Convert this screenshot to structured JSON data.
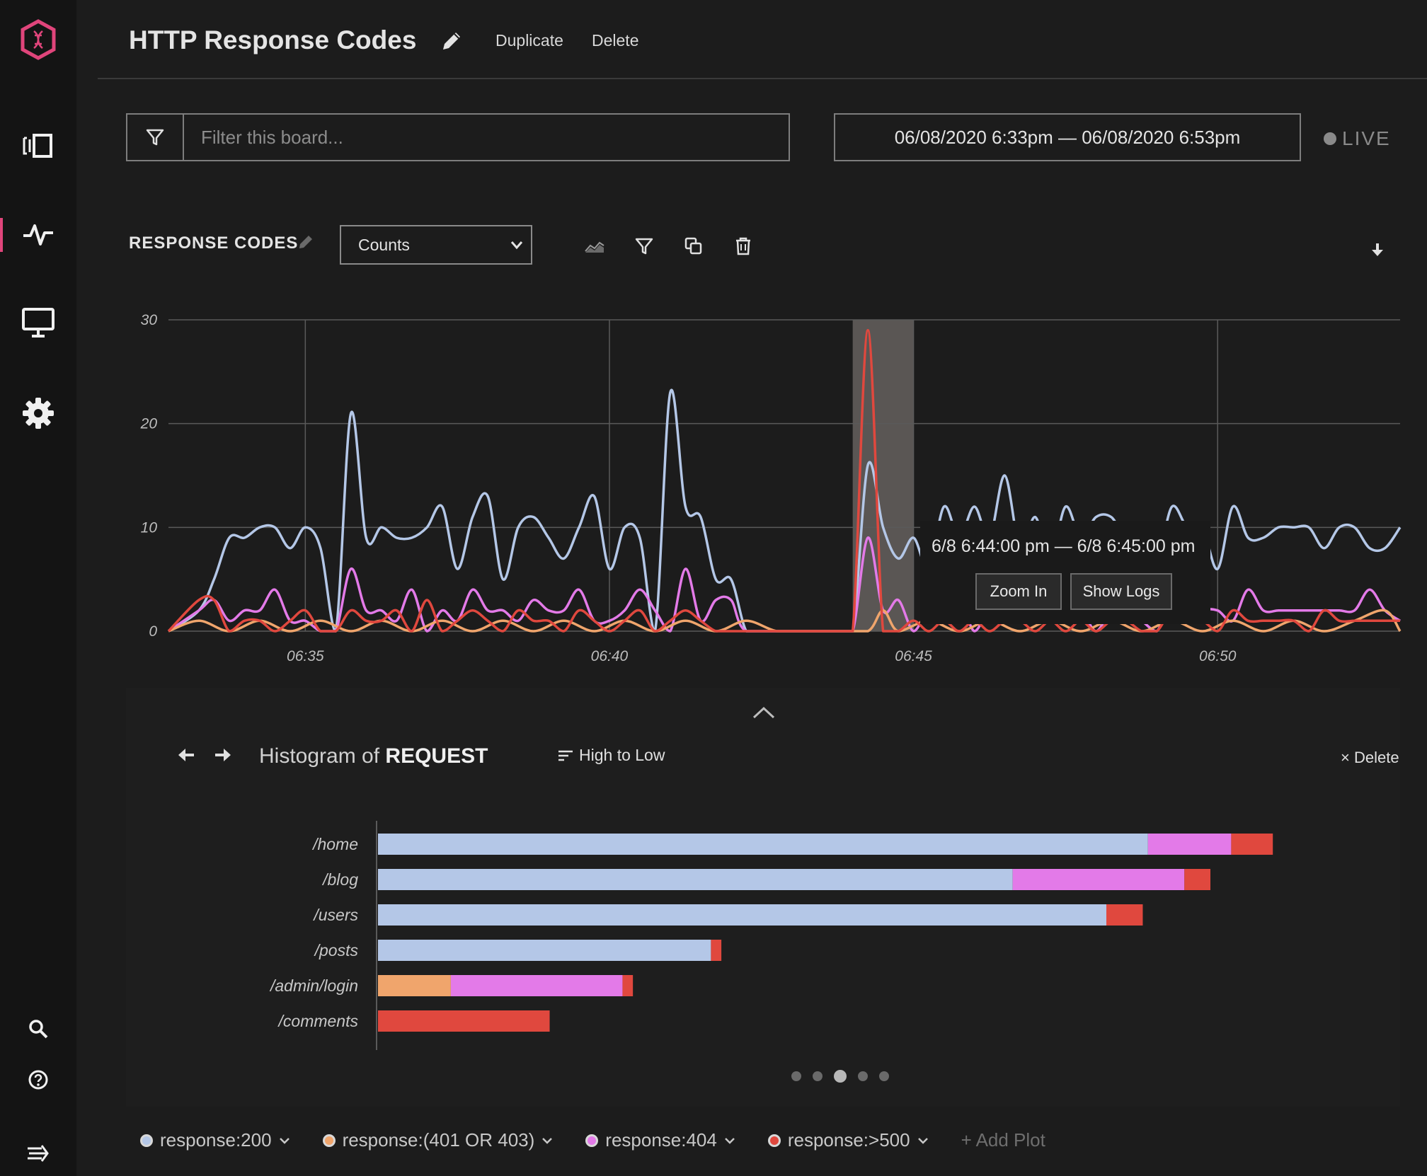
{
  "header": {
    "title": "HTTP Response Codes",
    "duplicate_label": "Duplicate",
    "delete_label": "Delete"
  },
  "filter": {
    "placeholder": "Filter this board..."
  },
  "date_range": "06/08/2020 6:33pm — 06/08/2020 6:53pm",
  "live_label": "LIVE",
  "panel": {
    "title": "RESPONSE CODES",
    "mode_selected": "Counts"
  },
  "tooltip": {
    "range": "6/8 6:44:00 pm — 6/8 6:45:00 pm",
    "zoom_label": "Zoom In",
    "logs_label": "Show Logs"
  },
  "histogram": {
    "title_prefix": "Histogram of",
    "title_field": "REQUEST",
    "sort_label": "High to Low",
    "delete_label": "× Delete",
    "page_count": 5,
    "active_page": 3
  },
  "legend": {
    "add_plot_label": "+ Add Plot"
  },
  "colors": {
    "accent": "#e0457b",
    "s200": "#b4c7e7",
    "s401": "#f0a56c",
    "s404": "#e37ae8",
    "s500": "#e0483e"
  },
  "chart_data": [
    {
      "type": "line",
      "ylim": [
        0,
        30
      ],
      "yticks": [
        "0",
        "10",
        "20",
        "30"
      ],
      "xticks": [
        "06:35",
        "06:40",
        "06:45",
        "06:50"
      ],
      "xtick_minutes": [
        35,
        40,
        45,
        50
      ],
      "x_range_minutes": [
        32.75,
        53.0
      ],
      "highlight_minutes": [
        44.0,
        45.0
      ],
      "series": [
        {
          "name": "response:200",
          "color": "#b4c7e7",
          "x": [
            32.75,
            33.25,
            33.5,
            33.75,
            34.0,
            34.25,
            34.5,
            34.75,
            35.0,
            35.25,
            35.5,
            35.75,
            36.0,
            36.25,
            36.5,
            36.75,
            37.0,
            37.25,
            37.5,
            37.75,
            38.0,
            38.25,
            38.5,
            38.75,
            39.0,
            39.25,
            39.5,
            39.75,
            40.0,
            40.25,
            40.5,
            40.75,
            41.0,
            41.25,
            41.5,
            41.75,
            42.0,
            42.25,
            42.5,
            42.75,
            43.0,
            43.25,
            43.5,
            43.75,
            44.0,
            44.25,
            44.5,
            44.75,
            45.0,
            45.25,
            45.5,
            45.75,
            46.0,
            46.25,
            46.5,
            46.75,
            47.0,
            47.25,
            47.5,
            47.75,
            48.0,
            48.25,
            48.5,
            48.75,
            49.0,
            49.25,
            49.5,
            49.75,
            50.0,
            50.25,
            50.5,
            50.75,
            51.0,
            51.25,
            51.5,
            51.75,
            52.0,
            52.25,
            52.5,
            52.75,
            53.0
          ],
          "y": [
            0,
            2,
            5,
            9,
            9,
            10,
            10,
            8,
            10,
            8,
            0,
            21,
            9,
            10,
            9,
            9,
            10,
            12,
            6,
            11,
            13,
            5,
            10,
            11,
            9,
            7,
            10,
            13,
            6,
            10,
            9,
            0,
            23,
            12,
            11,
            5,
            5,
            0,
            0,
            0,
            0,
            0,
            0,
            0,
            0,
            16,
            10,
            7,
            9,
            6,
            12,
            9,
            12,
            9,
            15,
            8,
            11,
            7,
            12,
            9,
            11,
            11,
            9,
            10,
            7,
            12,
            10,
            10,
            6,
            12,
            9,
            9,
            10,
            10,
            10,
            8,
            10,
            10,
            8,
            8,
            10
          ]
        },
        {
          "name": "response:(401 OR 403)",
          "color": "#f0a56c",
          "x": [
            32.75,
            33.25,
            33.75,
            34.25,
            34.75,
            35.25,
            35.75,
            36.25,
            36.75,
            37.25,
            37.75,
            38.25,
            38.75,
            39.25,
            39.75,
            40.25,
            40.75,
            41.25,
            41.75,
            42.25,
            42.75,
            43.25,
            43.75,
            44.25,
            44.5,
            44.75,
            45.25,
            45.75,
            46.25,
            46.75,
            47.25,
            47.75,
            48.25,
            48.75,
            49.25,
            49.75,
            50.25,
            50.75,
            51.25,
            51.75,
            52.25,
            52.75,
            53.0
          ],
          "y": [
            0,
            1,
            0,
            1,
            0,
            1,
            0,
            1,
            0,
            1,
            0,
            1,
            0,
            1,
            0,
            1,
            0,
            1,
            0,
            1,
            0,
            0,
            0,
            0,
            2,
            0,
            1,
            0,
            1,
            0,
            1,
            0,
            1,
            0,
            1,
            0,
            1,
            0,
            1,
            0,
            1,
            2,
            0
          ]
        },
        {
          "name": "response:404",
          "color": "#e37ae8",
          "x": [
            32.75,
            33.25,
            33.5,
            33.75,
            34.0,
            34.25,
            34.5,
            34.75,
            35.0,
            35.25,
            35.5,
            35.75,
            36.0,
            36.25,
            36.5,
            36.75,
            37.0,
            37.25,
            37.5,
            37.75,
            38.0,
            38.25,
            38.5,
            38.75,
            39.0,
            39.25,
            39.5,
            39.75,
            40.0,
            40.25,
            40.5,
            40.75,
            41.0,
            41.25,
            41.5,
            41.75,
            42.0,
            42.25,
            43.0,
            43.75,
            44.0,
            44.25,
            44.5,
            44.75,
            45.0,
            45.25,
            45.5,
            45.75,
            46.0,
            46.25,
            46.5,
            46.75,
            47.0,
            47.25,
            47.5,
            47.75,
            48.0,
            48.25,
            48.5,
            48.75,
            49.0,
            49.25,
            49.5,
            49.75,
            50.0,
            50.25,
            50.5,
            50.75,
            51.0,
            51.25,
            51.5,
            51.75,
            52.0,
            52.25,
            52.5,
            52.75,
            53.0
          ],
          "y": [
            0,
            2,
            3,
            1,
            2,
            2,
            4,
            1,
            1,
            0,
            0,
            6,
            2,
            2,
            1,
            4,
            0,
            2,
            1,
            4,
            2,
            2,
            1,
            3,
            2,
            2,
            4,
            1,
            1,
            2,
            4,
            2,
            0,
            6,
            1,
            3,
            3,
            0,
            0,
            0,
            0,
            9,
            2,
            3,
            0,
            2,
            1,
            3,
            0,
            2,
            1,
            2,
            1,
            3,
            1,
            2,
            0,
            2,
            2,
            1,
            0,
            3,
            1,
            2,
            2,
            1,
            4,
            2,
            2,
            2,
            2,
            2,
            2,
            2,
            4,
            2,
            1
          ]
        },
        {
          "name": "response:>500",
          "color": "#e0483e",
          "x": [
            32.75,
            33.25,
            33.5,
            33.75,
            34.0,
            34.25,
            34.5,
            34.75,
            35.0,
            35.25,
            35.5,
            35.75,
            36.0,
            36.25,
            36.5,
            36.75,
            37.0,
            37.25,
            37.5,
            37.75,
            38.0,
            38.25,
            38.5,
            38.75,
            39.0,
            39.25,
            39.5,
            39.75,
            40.0,
            40.25,
            40.5,
            40.75,
            41.0,
            41.25,
            41.5,
            41.75,
            42.0,
            42.25,
            43.0,
            43.75,
            44.0,
            44.25,
            44.5,
            44.75,
            45.0,
            45.25,
            45.5,
            45.75,
            46.0,
            46.25,
            46.5,
            46.75,
            47.0,
            47.25,
            47.5,
            47.75,
            48.0,
            48.25,
            48.5,
            48.75,
            49.0,
            49.25,
            49.5,
            49.75,
            50.0,
            50.25,
            50.5,
            50.75,
            51.0,
            51.25,
            51.5,
            51.75,
            52.0,
            52.25,
            52.5,
            52.75,
            53.0
          ],
          "y": [
            0,
            3,
            3,
            0,
            1,
            1,
            0,
            1,
            2,
            0,
            0,
            2,
            1,
            1,
            2,
            0,
            3,
            0,
            1,
            2,
            1,
            0,
            2,
            1,
            1,
            0,
            2,
            1,
            0,
            1,
            2,
            0,
            1,
            2,
            1,
            0,
            0,
            0,
            0,
            0,
            0,
            29,
            0,
            0,
            1,
            0,
            1,
            0,
            1,
            0,
            1,
            1,
            0,
            1,
            0,
            1,
            0,
            1,
            1,
            0,
            0,
            2,
            1,
            1,
            0,
            2,
            1,
            1,
            1,
            1,
            0,
            2,
            1,
            1,
            1,
            1,
            1
          ]
        }
      ]
    },
    {
      "type": "bar",
      "orientation": "horizontal",
      "stacked": true,
      "categories": [
        "/home",
        "/blog",
        "/users",
        "/posts",
        "/admin/login",
        "/comments"
      ],
      "series": [
        {
          "name": "response:200",
          "color": "#b4c7e7",
          "values": [
            74,
            61,
            70,
            32,
            0,
            0
          ]
        },
        {
          "name": "response:(401 OR 403)",
          "color": "#f0a56c",
          "values": [
            0,
            0,
            0,
            0,
            7,
            0
          ]
        },
        {
          "name": "response:404",
          "color": "#e37ae8",
          "values": [
            8,
            16.5,
            0,
            0,
            16.5,
            0
          ]
        },
        {
          "name": "response:>500",
          "color": "#e0483e",
          "values": [
            4,
            2.5,
            3.5,
            1,
            1,
            16.5
          ]
        }
      ]
    }
  ]
}
